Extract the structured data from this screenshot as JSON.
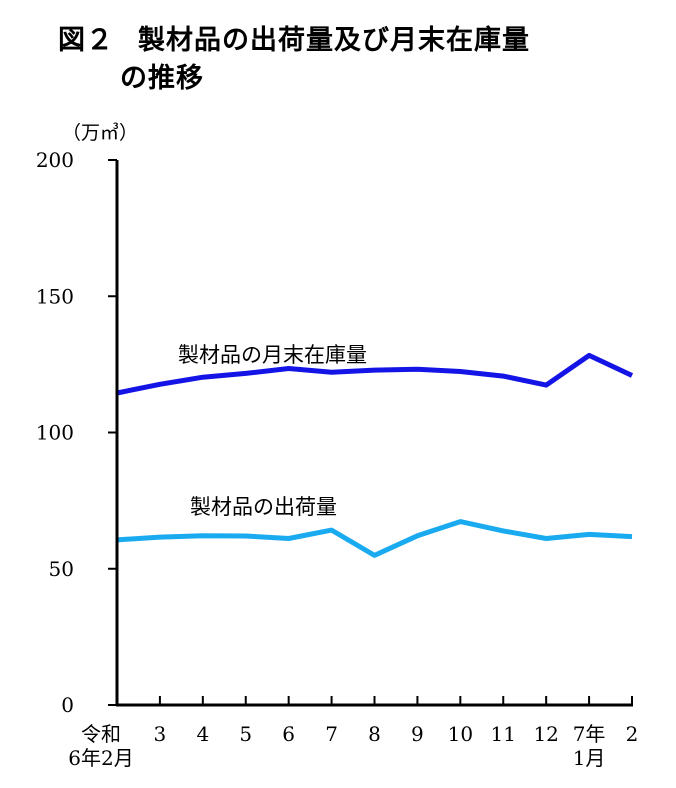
{
  "title": {
    "line1_prefix": "図２",
    "line1_main": "製材品の出荷量及び月末在庫量",
    "line2": "の推移"
  },
  "colors": {
    "inventory": "#1414e6",
    "shipments": "#1aaaf0",
    "axis": "#000000"
  },
  "chart_data": {
    "type": "line",
    "title": "図２　製材品の出荷量及び月末在庫量の推移",
    "ylabel": "（万㎥）",
    "ylim": [
      0,
      200
    ],
    "yticks": [
      0,
      50,
      100,
      150,
      200
    ],
    "grid": false,
    "x_categories": [
      [
        "令和",
        "6年2月"
      ],
      [
        "3"
      ],
      [
        "4"
      ],
      [
        "5"
      ],
      [
        "6"
      ],
      [
        "7"
      ],
      [
        "8"
      ],
      [
        "9"
      ],
      [
        "10"
      ],
      [
        "11"
      ],
      [
        "12"
      ],
      [
        "7年",
        "1月"
      ],
      [
        "2"
      ]
    ],
    "series": [
      {
        "name": "製材品の月末在庫量",
        "values": [
          114.5,
          117.7,
          120.3,
          121.7,
          123.5,
          122.1,
          122.9,
          123.2,
          122.4,
          120.7,
          117.4,
          128.3,
          120.9
        ]
      },
      {
        "name": "製材品の出荷量",
        "values": [
          60.6,
          61.6,
          62.1,
          62.0,
          61.1,
          64.2,
          54.9,
          62.1,
          67.3,
          63.9,
          61.1,
          62.6,
          61.8
        ]
      }
    ]
  }
}
